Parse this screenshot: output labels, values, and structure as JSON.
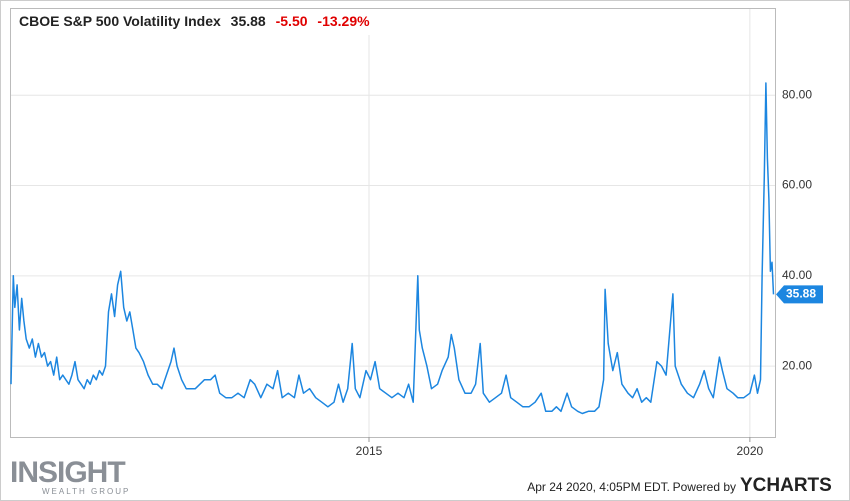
{
  "chart_data": {
    "type": "line",
    "title": "CBOE S&P 500 Volatility Index",
    "title_value": "35.88",
    "title_change": "-5.50",
    "title_change_pct": "-13.29%",
    "color": "#1c86e0",
    "grid": true,
    "x": [
      2010.3,
      2010.33,
      2010.35,
      2010.38,
      2010.41,
      2010.44,
      2010.47,
      2010.5,
      2010.54,
      2010.58,
      2010.62,
      2010.66,
      2010.7,
      2010.74,
      2010.78,
      2010.82,
      2010.86,
      2010.9,
      2010.94,
      2010.98,
      2011.02,
      2011.06,
      2011.1,
      2011.14,
      2011.18,
      2011.22,
      2011.26,
      2011.3,
      2011.34,
      2011.38,
      2011.42,
      2011.46,
      2011.5,
      2011.54,
      2011.58,
      2011.62,
      2011.66,
      2011.7,
      2011.74,
      2011.78,
      2011.82,
      2011.86,
      2011.9,
      2011.94,
      2011.98,
      2012.04,
      2012.1,
      2012.16,
      2012.22,
      2012.28,
      2012.34,
      2012.4,
      2012.44,
      2012.48,
      2012.54,
      2012.6,
      2012.66,
      2012.72,
      2012.78,
      2012.84,
      2012.92,
      2012.98,
      2013.04,
      2013.12,
      2013.2,
      2013.28,
      2013.36,
      2013.44,
      2013.5,
      2013.58,
      2013.66,
      2013.74,
      2013.8,
      2013.86,
      2013.94,
      2014.02,
      2014.08,
      2014.14,
      2014.22,
      2014.3,
      2014.38,
      2014.46,
      2014.54,
      2014.6,
      2014.66,
      2014.72,
      2014.78,
      2014.82,
      2014.88,
      2014.96,
      2015.02,
      2015.08,
      2015.14,
      2015.22,
      2015.3,
      2015.38,
      2015.46,
      2015.52,
      2015.58,
      2015.64,
      2015.66,
      2015.7,
      2015.76,
      2015.82,
      2015.9,
      2015.96,
      2016.04,
      2016.08,
      2016.12,
      2016.18,
      2016.26,
      2016.34,
      2016.4,
      2016.46,
      2016.5,
      2016.58,
      2016.66,
      2016.74,
      2016.8,
      2016.86,
      2016.94,
      2017.02,
      2017.1,
      2017.18,
      2017.26,
      2017.32,
      2017.4,
      2017.46,
      2017.52,
      2017.6,
      2017.66,
      2017.74,
      2017.8,
      2017.88,
      2017.96,
      2018.02,
      2018.08,
      2018.1,
      2018.14,
      2018.2,
      2018.26,
      2018.32,
      2018.4,
      2018.46,
      2018.52,
      2018.58,
      2018.64,
      2018.7,
      2018.78,
      2018.84,
      2018.9,
      2018.96,
      2018.99,
      2019.02,
      2019.1,
      2019.18,
      2019.26,
      2019.34,
      2019.4,
      2019.46,
      2019.52,
      2019.6,
      2019.64,
      2019.7,
      2019.78,
      2019.84,
      2019.92,
      2020.0,
      2020.06,
      2020.1,
      2020.14,
      2020.16,
      2020.19,
      2020.21,
      2020.23,
      2020.25,
      2020.27,
      2020.29,
      2020.31
    ],
    "values": [
      16,
      40,
      33,
      38,
      28,
      35,
      30,
      26,
      24,
      26,
      22,
      25,
      22,
      23,
      20,
      21,
      18,
      22,
      17,
      18,
      17,
      16,
      18,
      21,
      17,
      16,
      15,
      17,
      16,
      18,
      17,
      19,
      18,
      20,
      32,
      36,
      31,
      38,
      41,
      33,
      30,
      32,
      28,
      24,
      23,
      21,
      18,
      16,
      16,
      15,
      18,
      21,
      24,
      20,
      17,
      15,
      15,
      15,
      16,
      17,
      17,
      18,
      14,
      13,
      13,
      14,
      13,
      17,
      16,
      13,
      16,
      15,
      19,
      13,
      14,
      13,
      18,
      14,
      15,
      13,
      12,
      11,
      12,
      16,
      12,
      15,
      25,
      15,
      13,
      19,
      17,
      21,
      15,
      14,
      13,
      14,
      13,
      16,
      12,
      40,
      28,
      24,
      20,
      15,
      16,
      19,
      22,
      27,
      24,
      17,
      14,
      14,
      16,
      25,
      14,
      12,
      13,
      14,
      18,
      13,
      12,
      11,
      11,
      12,
      14,
      10,
      10,
      11,
      10,
      14,
      11,
      10,
      9.5,
      10,
      10,
      11,
      17,
      37,
      25,
      19,
      23,
      16,
      14,
      13,
      15,
      12,
      13,
      12,
      21,
      20,
      18,
      30,
      36,
      20,
      16,
      14,
      13,
      16,
      19,
      15,
      13,
      22,
      19,
      15,
      14,
      13,
      13,
      14,
      18,
      14,
      17,
      40,
      62,
      82.7,
      66,
      57,
      41,
      43,
      35.88
    ],
    "xlim": [
      2010.3,
      2020.33
    ],
    "xticks": [
      2015,
      2020
    ],
    "ylim": [
      4.3,
      99.1
    ],
    "yticks": [
      {
        "value": 20,
        "label": "20.00"
      },
      {
        "value": 40,
        "label": "40.00"
      },
      {
        "value": 60,
        "label": "60.00"
      },
      {
        "value": 80,
        "label": "80.00"
      }
    ],
    "logo": "INSIGHT",
    "logo_sub": "WEALTH GROUP",
    "footer_date": "Apr 24 2020, 4:05PM EDT.",
    "footer_powered": "Powered by",
    "brand": "YCHARTS"
  }
}
